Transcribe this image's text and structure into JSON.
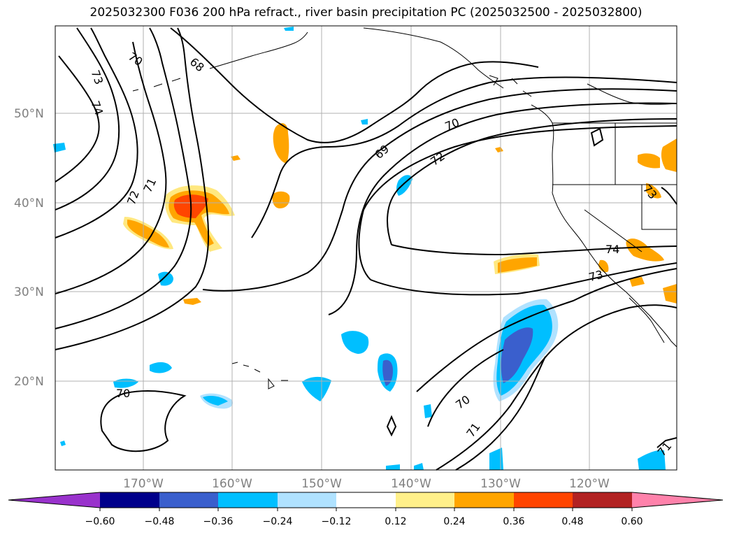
{
  "title": "2025032300 F036 200 hPa refract., river basin precipitation PC (2025032500 - 2025032800)",
  "map": {
    "lat_labels": [
      "50°N",
      "40°N",
      "30°N",
      "20°N"
    ],
    "lon_labels": [
      "170°W",
      "160°W",
      "150°W",
      "140°W",
      "130°W",
      "120°W"
    ],
    "contour_labels": [
      "70",
      "68",
      "73",
      "74",
      "72",
      "71",
      "69",
      "70",
      "72",
      "74",
      "73",
      "73",
      "70",
      "70",
      "71",
      "71"
    ]
  },
  "colorbar": {
    "ticks": [
      "−0.60",
      "−0.48",
      "−0.36",
      "−0.24",
      "−0.12",
      "0.12",
      "0.24",
      "0.36",
      "0.48",
      "0.60"
    ],
    "colors": [
      "#9932cc",
      "#00008b",
      "#3a5fcd",
      "#00bfff",
      "#b0e2ff",
      "#ffffff",
      "#fff08a",
      "#ffa500",
      "#ff4500",
      "#b22222",
      "#ff82ab"
    ]
  }
}
